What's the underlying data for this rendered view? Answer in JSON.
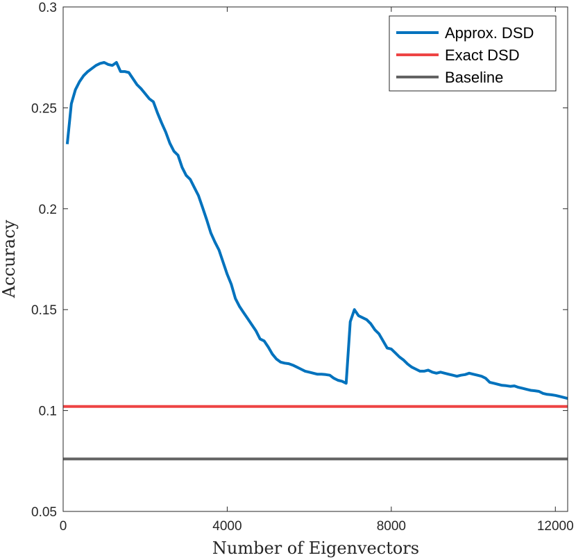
{
  "chart_data": {
    "type": "line",
    "title": "",
    "xlabel": "Number of Eigenvectors",
    "ylabel": "Accuracy",
    "xlim": [
      0,
      12300
    ],
    "ylim": [
      0.05,
      0.3
    ],
    "xticks": [
      0,
      4000,
      8000,
      12000
    ],
    "xtick_labels": [
      "0",
      "4000",
      "8000",
      "12000"
    ],
    "yticks": [
      0.05,
      0.1,
      0.15,
      0.2,
      0.25,
      0.3
    ],
    "ytick_labels": [
      "0.05",
      "0.1",
      "0.15",
      "0.2",
      "0.25",
      "0.3"
    ],
    "grid": false,
    "legend_position": "top-right",
    "series": [
      {
        "name": "Approx. DSD",
        "color": "#0072BD",
        "x": [
          100,
          200,
          300,
          400,
          500,
          600,
          700,
          800,
          900,
          1000,
          1100,
          1200,
          1300,
          1400,
          1500,
          1600,
          1700,
          1800,
          1900,
          2000,
          2100,
          2200,
          2300,
          2400,
          2500,
          2600,
          2700,
          2800,
          2900,
          3000,
          3100,
          3200,
          3300,
          3400,
          3500,
          3600,
          3700,
          3800,
          3900,
          4000,
          4100,
          4200,
          4300,
          4400,
          4500,
          4600,
          4700,
          4800,
          4900,
          5000,
          5100,
          5200,
          5300,
          5400,
          5500,
          5600,
          5700,
          5800,
          5900,
          6000,
          6100,
          6200,
          6300,
          6400,
          6500,
          6600,
          6700,
          6800,
          6900,
          7000,
          7100,
          7200,
          7300,
          7400,
          7500,
          7600,
          7700,
          7800,
          7900,
          8000,
          8100,
          8200,
          8300,
          8400,
          8500,
          8600,
          8700,
          8800,
          8900,
          9000,
          9100,
          9200,
          9300,
          9400,
          9500,
          9600,
          9700,
          9800,
          9900,
          10000,
          10100,
          10200,
          10300,
          10400,
          10500,
          10600,
          10700,
          10800,
          10900,
          11000,
          11100,
          11200,
          11300,
          11400,
          11500,
          11600,
          11700,
          11800,
          11900,
          12000,
          12100,
          12200,
          12300
        ],
        "values": [
          0.232,
          0.252,
          0.259,
          0.263,
          0.266,
          0.268,
          0.2695,
          0.271,
          0.272,
          0.2725,
          0.2715,
          0.271,
          0.2725,
          0.268,
          0.268,
          0.2675,
          0.2645,
          0.2615,
          0.2595,
          0.257,
          0.2545,
          0.253,
          0.2475,
          0.2425,
          0.238,
          0.2325,
          0.2285,
          0.2265,
          0.2205,
          0.2165,
          0.2145,
          0.2105,
          0.2065,
          0.2005,
          0.1945,
          0.188,
          0.1835,
          0.1795,
          0.1735,
          0.1675,
          0.1625,
          0.1555,
          0.1515,
          0.1485,
          0.1455,
          0.1425,
          0.1395,
          0.1355,
          0.1345,
          0.1315,
          0.128,
          0.1255,
          0.124,
          0.1235,
          0.1232,
          0.1225,
          0.1215,
          0.1205,
          0.1195,
          0.119,
          0.1185,
          0.118,
          0.118,
          0.1178,
          0.1175,
          0.116,
          0.115,
          0.1145,
          0.1135,
          0.144,
          0.15,
          0.147,
          0.146,
          0.145,
          0.143,
          0.14,
          0.138,
          0.1345,
          0.131,
          0.1305,
          0.1285,
          0.1265,
          0.125,
          0.123,
          0.1215,
          0.1205,
          0.1195,
          0.1195,
          0.12,
          0.119,
          0.1185,
          0.119,
          0.1185,
          0.118,
          0.1175,
          0.117,
          0.1175,
          0.1178,
          0.1185,
          0.118,
          0.1175,
          0.117,
          0.116,
          0.114,
          0.1135,
          0.113,
          0.1125,
          0.1123,
          0.112,
          0.1122,
          0.1115,
          0.111,
          0.1105,
          0.11,
          0.1098,
          0.1095,
          0.1085,
          0.108,
          0.1078,
          0.1075,
          0.107,
          0.1065,
          0.106
        ]
      },
      {
        "name": "Exact DSD",
        "color": "#EE4444",
        "x": [
          0,
          12300
        ],
        "values": [
          0.102,
          0.102
        ]
      },
      {
        "name": "Baseline",
        "color": "#636363",
        "x": [
          0,
          12300
        ],
        "values": [
          0.076,
          0.076
        ]
      }
    ]
  }
}
